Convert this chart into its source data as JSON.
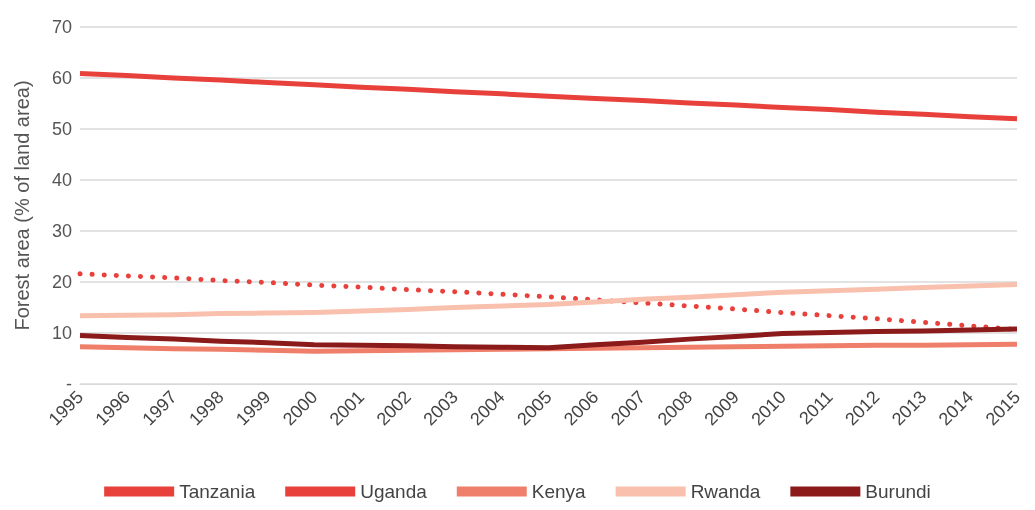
{
  "chart_data": {
    "type": "line",
    "ylabel": "Forest area (% of land area)",
    "categories": [
      "1995",
      "1996",
      "1997",
      "1998",
      "1999",
      "2000",
      "2001",
      "2002",
      "2003",
      "2004",
      "2005",
      "2006",
      "2007",
      "2008",
      "2009",
      "2010",
      "2011",
      "2012",
      "2013",
      "2014",
      "2015"
    ],
    "series": [
      {
        "name": "Tanzania",
        "color": "#e8413c",
        "line_style": "solid",
        "values": [
          60.9,
          60.5,
          60.0,
          59.6,
          59.1,
          58.7,
          58.2,
          57.8,
          57.3,
          56.9,
          56.4,
          56.0,
          55.6,
          55.1,
          54.7,
          54.2,
          53.8,
          53.3,
          52.9,
          52.4,
          52.0
        ]
      },
      {
        "name": "Uganda",
        "color": "#e8413c",
        "line_style": "dotted",
        "values": [
          21.6,
          21.2,
          20.8,
          20.3,
          19.9,
          19.4,
          19.0,
          18.5,
          18.1,
          17.6,
          17.1,
          16.5,
          15.9,
          15.3,
          14.7,
          14.0,
          13.4,
          12.8,
          12.1,
          11.4,
          10.7
        ]
      },
      {
        "name": "Kenya",
        "color": "#ef7f6a",
        "line_style": "solid",
        "values": [
          7.3,
          7.1,
          6.9,
          6.8,
          6.6,
          6.4,
          6.5,
          6.6,
          6.7,
          6.8,
          6.9,
          7.0,
          7.1,
          7.2,
          7.3,
          7.4,
          7.5,
          7.6,
          7.6,
          7.7,
          7.8
        ]
      },
      {
        "name": "Rwanda",
        "color": "#f9c0ae",
        "line_style": "solid",
        "values": [
          13.4,
          13.5,
          13.6,
          13.8,
          13.9,
          14.0,
          14.3,
          14.6,
          15.0,
          15.3,
          15.6,
          16.1,
          16.6,
          17.0,
          17.5,
          18.0,
          18.3,
          18.6,
          18.9,
          19.2,
          19.5
        ]
      },
      {
        "name": "Burundi",
        "color": "#8b1a1a",
        "line_style": "solid",
        "values": [
          9.5,
          9.1,
          8.8,
          8.4,
          8.1,
          7.7,
          7.6,
          7.5,
          7.3,
          7.2,
          7.1,
          7.7,
          8.2,
          8.8,
          9.3,
          9.9,
          10.1,
          10.3,
          10.4,
          10.6,
          10.8
        ]
      }
    ],
    "ylim": [
      0,
      70
    ],
    "yticks": [
      {
        "value": 0,
        "label": "-"
      },
      10,
      20,
      30,
      40,
      50,
      60,
      70
    ],
    "grid": "y",
    "legend": "bottom",
    "marker": "none"
  }
}
